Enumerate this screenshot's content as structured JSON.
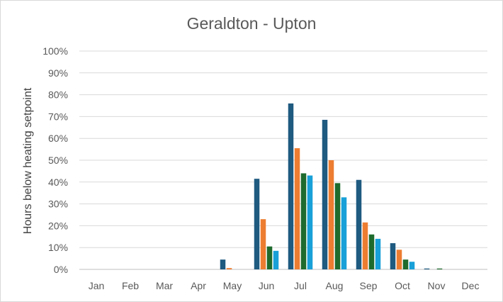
{
  "chart_data": {
    "type": "bar",
    "title": "Geraldton - Upton",
    "xlabel": "",
    "ylabel": "Hours below heating setpoint",
    "ylim": [
      0,
      100
    ],
    "y_tick_labels": [
      "0%",
      "10%",
      "20%",
      "30%",
      "40%",
      "50%",
      "60%",
      "70%",
      "80%",
      "90%",
      "100%"
    ],
    "categories": [
      "Jan",
      "Feb",
      "Mar",
      "Apr",
      "May",
      "Jun",
      "Jul",
      "Aug",
      "Sep",
      "Oct",
      "Nov",
      "Dec"
    ],
    "grid": true,
    "legend": "none",
    "series": [
      {
        "color": "#1f5a80",
        "values": [
          0,
          0,
          0,
          0,
          4.5,
          41.5,
          76,
          68.5,
          41,
          12,
          0.4,
          0
        ]
      },
      {
        "color": "#ed7d31",
        "values": [
          0,
          0,
          0,
          0,
          0.6,
          23,
          55.5,
          50,
          21.5,
          9,
          0,
          0
        ]
      },
      {
        "color": "#1e6b2d",
        "values": [
          0,
          0,
          0,
          0,
          0,
          10.5,
          44,
          39.5,
          16,
          4.5,
          0.4,
          0
        ]
      },
      {
        "color": "#18a0d8",
        "values": [
          0,
          0,
          0,
          0,
          0,
          8.5,
          43,
          33,
          14,
          3.5,
          0,
          0
        ]
      }
    ]
  }
}
